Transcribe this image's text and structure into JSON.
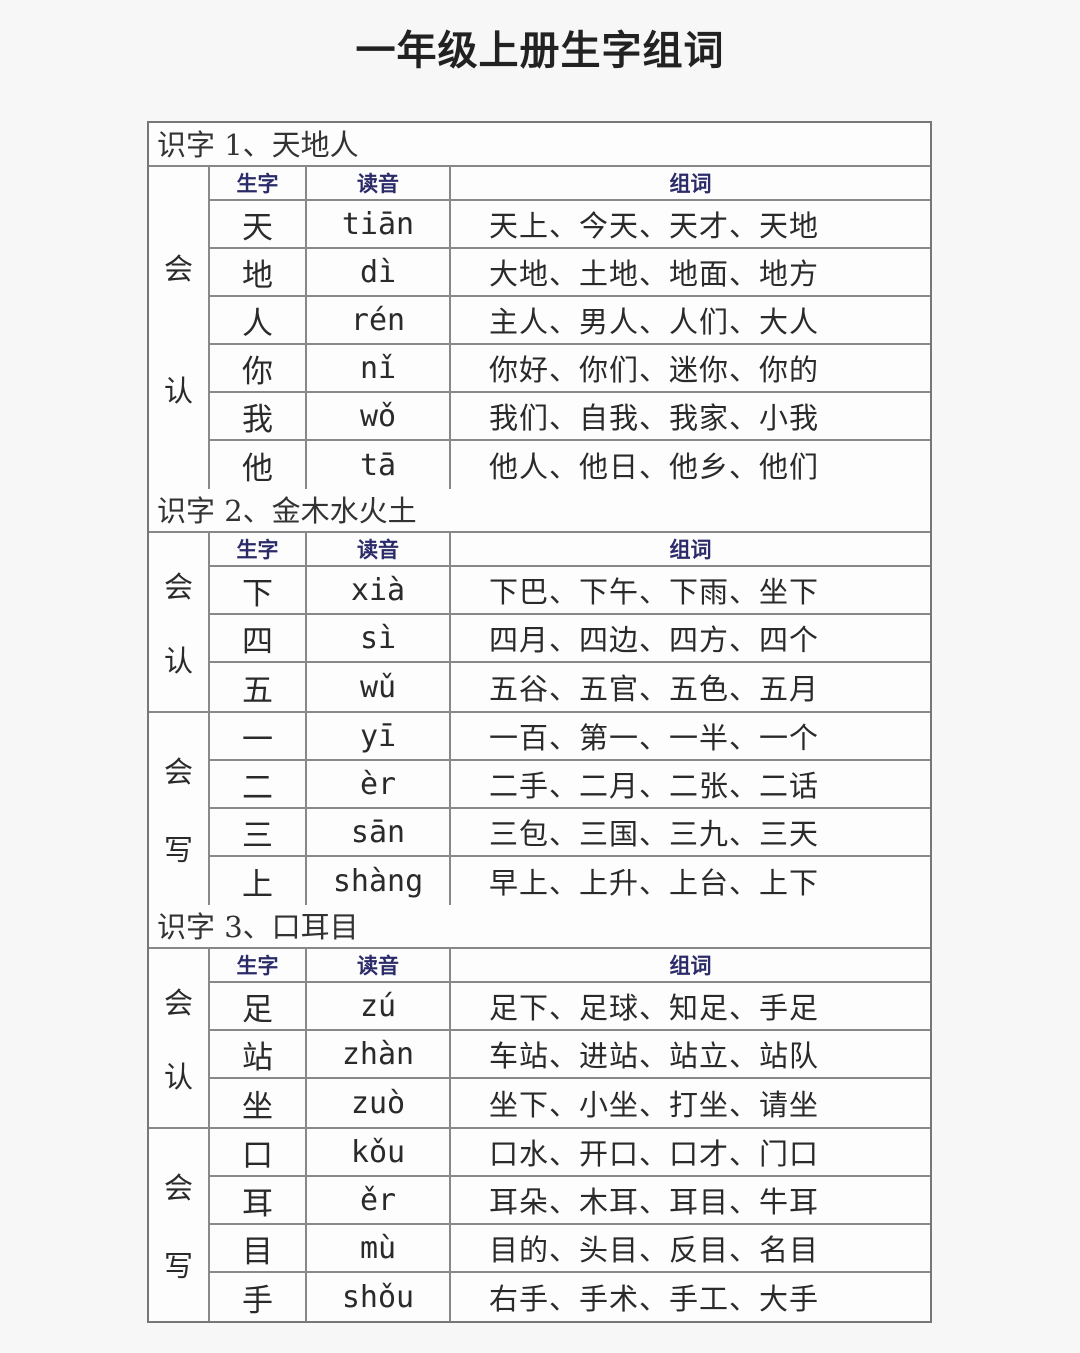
{
  "title": "一年级上册生字组词",
  "column_headers": {
    "char": "生字",
    "pinyin": "读音",
    "words": "组词"
  },
  "sections": [
    {
      "title": "识字 1、天地人",
      "groups": [
        {
          "label": [
            "会",
            "认"
          ],
          "with_header": true,
          "rows": [
            {
              "char": "天",
              "pinyin": "tiān",
              "words": "天上、今天、天才、天地"
            },
            {
              "char": "地",
              "pinyin": "dì",
              "words": "大地、土地、地面、地方"
            },
            {
              "char": "人",
              "pinyin": "rén",
              "words": "主人、男人、人们、大人"
            },
            {
              "char": "你",
              "pinyin": "nǐ",
              "words": "你好、你们、迷你、你的"
            },
            {
              "char": "我",
              "pinyin": "wǒ",
              "words": "我们、自我、我家、小我"
            },
            {
              "char": "他",
              "pinyin": "tā",
              "words": "他人、他日、他乡、他们"
            }
          ]
        }
      ]
    },
    {
      "title": "识字 2、金木水火土",
      "groups": [
        {
          "label": [
            "会",
            "认"
          ],
          "with_header": true,
          "rows": [
            {
              "char": "下",
              "pinyin": "xià",
              "words": "下巴、下午、下雨、坐下"
            },
            {
              "char": "四",
              "pinyin": "sì",
              "words": "四月、四边、四方、四个"
            },
            {
              "char": "五",
              "pinyin": "wǔ",
              "words": "五谷、五官、五色、五月"
            }
          ]
        },
        {
          "label": [
            "会",
            "写"
          ],
          "with_header": false,
          "rows": [
            {
              "char": "一",
              "pinyin": "yī",
              "words": "一百、第一、一半、一个"
            },
            {
              "char": "二",
              "pinyin": "èr",
              "words": "二手、二月、二张、二话"
            },
            {
              "char": "三",
              "pinyin": "sān",
              "words": "三包、三国、三九、三天"
            },
            {
              "char": "上",
              "pinyin": "shàng",
              "words": "早上、上升、上台、上下"
            }
          ]
        }
      ]
    },
    {
      "title": "识字 3、口耳目",
      "groups": [
        {
          "label": [
            "会",
            "认"
          ],
          "with_header": true,
          "rows": [
            {
              "char": "足",
              "pinyin": "zú",
              "words": "足下、足球、知足、手足"
            },
            {
              "char": "站",
              "pinyin": "zhàn",
              "words": "车站、进站、站立、站队"
            },
            {
              "char": "坐",
              "pinyin": "zuò",
              "words": "坐下、小坐、打坐、请坐"
            }
          ]
        },
        {
          "label": [
            "会",
            "写"
          ],
          "with_header": false,
          "rows": [
            {
              "char": "口",
              "pinyin": "kǒu",
              "words": "口水、开口、口才、门口"
            },
            {
              "char": "耳",
              "pinyin": "ěr",
              "words": "耳朵、木耳、耳目、牛耳"
            },
            {
              "char": "目",
              "pinyin": "mù",
              "words": "目的、头目、反目、名目"
            },
            {
              "char": "手",
              "pinyin": "shǒu",
              "words": "右手、手术、手工、大手"
            }
          ]
        }
      ]
    }
  ]
}
